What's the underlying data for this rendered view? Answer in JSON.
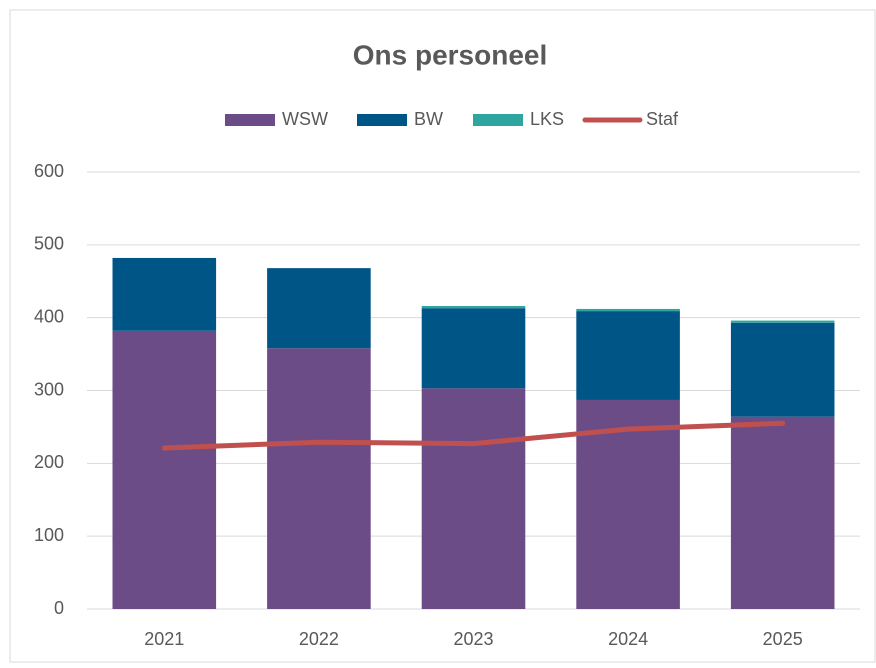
{
  "chart_data": {
    "type": "bar",
    "stacked": true,
    "title": "Ons personeel",
    "categories": [
      "2021",
      "2022",
      "2023",
      "2024",
      "2025"
    ],
    "series": [
      {
        "name": "WSW",
        "color": "#6b4c87",
        "values": [
          382,
          358,
          303,
          287,
          264
        ]
      },
      {
        "name": "BW",
        "color": "#005587",
        "values": [
          100,
          110,
          110,
          122,
          129
        ]
      },
      {
        "name": "LKS",
        "color": "#2fa5a0",
        "values": [
          0,
          0,
          3,
          3,
          3
        ]
      },
      {
        "name": "Staf",
        "color": "#c0504d",
        "type": "line",
        "values": [
          221,
          229,
          227,
          247,
          255
        ]
      }
    ],
    "ylim": [
      0,
      600
    ],
    "yticks": [
      0,
      100,
      200,
      300,
      400,
      500,
      600
    ],
    "grid": true,
    "legend": "top"
  }
}
